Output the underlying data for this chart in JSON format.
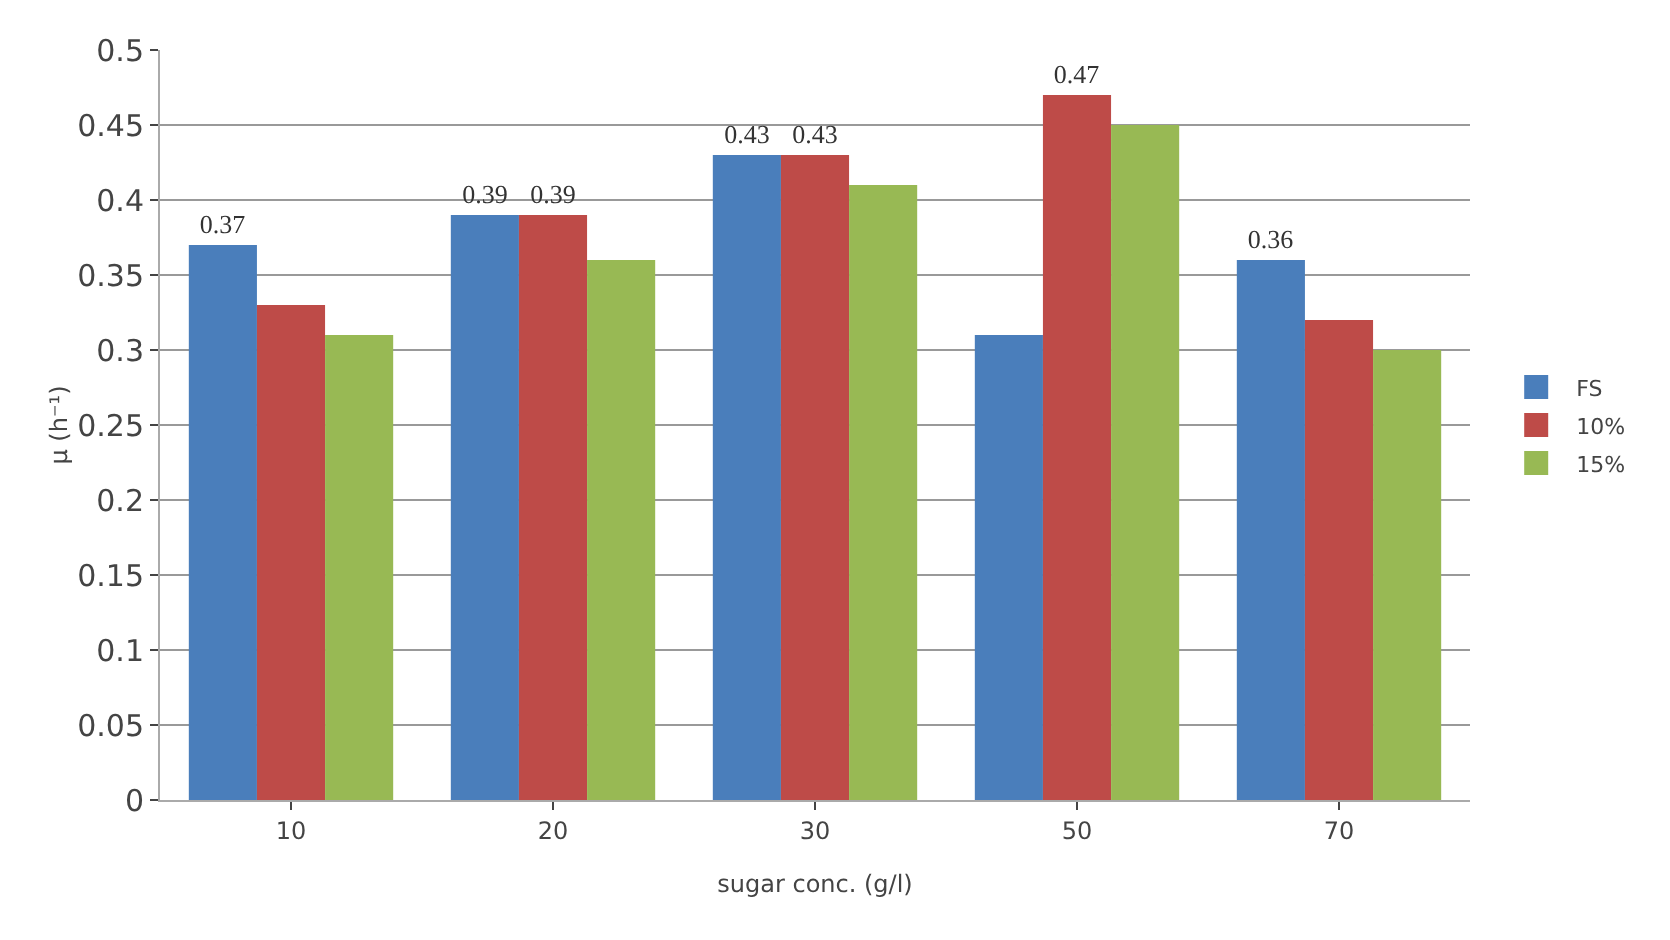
{
  "chart_data": {
    "type": "bar",
    "xlabel": "sugar conc. (g/l)",
    "ylabel": "μ (h⁻¹)",
    "categories": [
      "10",
      "20",
      "30",
      "50",
      "70"
    ],
    "series": [
      {
        "name": "FS",
        "color": "#4a7ebb",
        "values": [
          0.37,
          0.39,
          0.43,
          0.31,
          0.36
        ],
        "value_labels": [
          "0.37",
          "0.39",
          "0.43",
          null,
          "0.36"
        ]
      },
      {
        "name": "10%",
        "color": "#be4b48",
        "values": [
          0.33,
          0.39,
          0.43,
          0.47,
          0.32
        ],
        "value_labels": [
          null,
          "0.39",
          "0.43",
          "0.47",
          null
        ]
      },
      {
        "name": "15%",
        "color": "#98b954",
        "values": [
          0.31,
          0.36,
          0.41,
          0.45,
          0.3
        ],
        "value_labels": [
          null,
          null,
          null,
          null,
          null
        ]
      }
    ],
    "ylim": [
      0,
      0.5
    ],
    "yticks": [
      0,
      0.05,
      0.1,
      0.15,
      0.2,
      0.25,
      0.3,
      0.35,
      0.4,
      0.45,
      0.5
    ],
    "grid": "y",
    "legend": "right"
  }
}
